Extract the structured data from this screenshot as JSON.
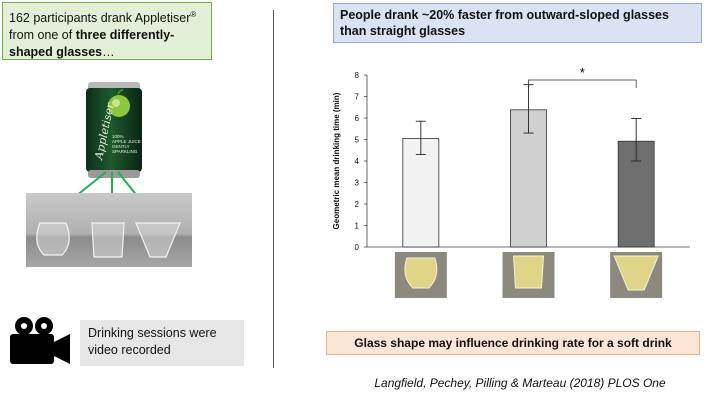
{
  "left": {
    "intro_part1": "162 participants drank Appletiser",
    "intro_reg": "®",
    "intro_part2": " from one of ",
    "intro_bold": "three differently-shaped glasses",
    "intro_end": "…",
    "can": {
      "brand": "Appletiser",
      "label_lines": [
        "100%",
        "APPLE JUICE",
        "GENTLY",
        "SPARKLING"
      ]
    },
    "video_text": "Drinking sessions were video recorded"
  },
  "headline": "People drank ~20% faster from outward-sloped glasses than straight glasses",
  "conclusion": "Glass shape may influence drinking rate for a soft drink",
  "citation": "Langfield, Pechey, Pilling & Marteau (2018) PLOS One",
  "colors": {
    "green_box": "#e2efd9",
    "blue_box": "#dae3f3",
    "orange_box": "#fbe5d6",
    "arrow_green": "#22b14c"
  },
  "chart_data": {
    "type": "bar",
    "ylabel": "Geometric mean drinking time (min)",
    "ylim": [
      0,
      8
    ],
    "yticks": [
      "0",
      "1",
      "2",
      "3",
      "4",
      "5",
      "6",
      "7",
      "8"
    ],
    "values": [
      5.05,
      6.38,
      4.92
    ],
    "error_low": [
      4.3,
      5.3,
      4.0
    ],
    "error_high": [
      5.85,
      7.55,
      5.98
    ],
    "bar_colors": [
      "#f2f2f2",
      "#d0d0d0",
      "#6e6e6e"
    ],
    "significance": {
      "between": [
        1,
        2
      ],
      "label": "*"
    },
    "grid": false,
    "legend": "none"
  }
}
